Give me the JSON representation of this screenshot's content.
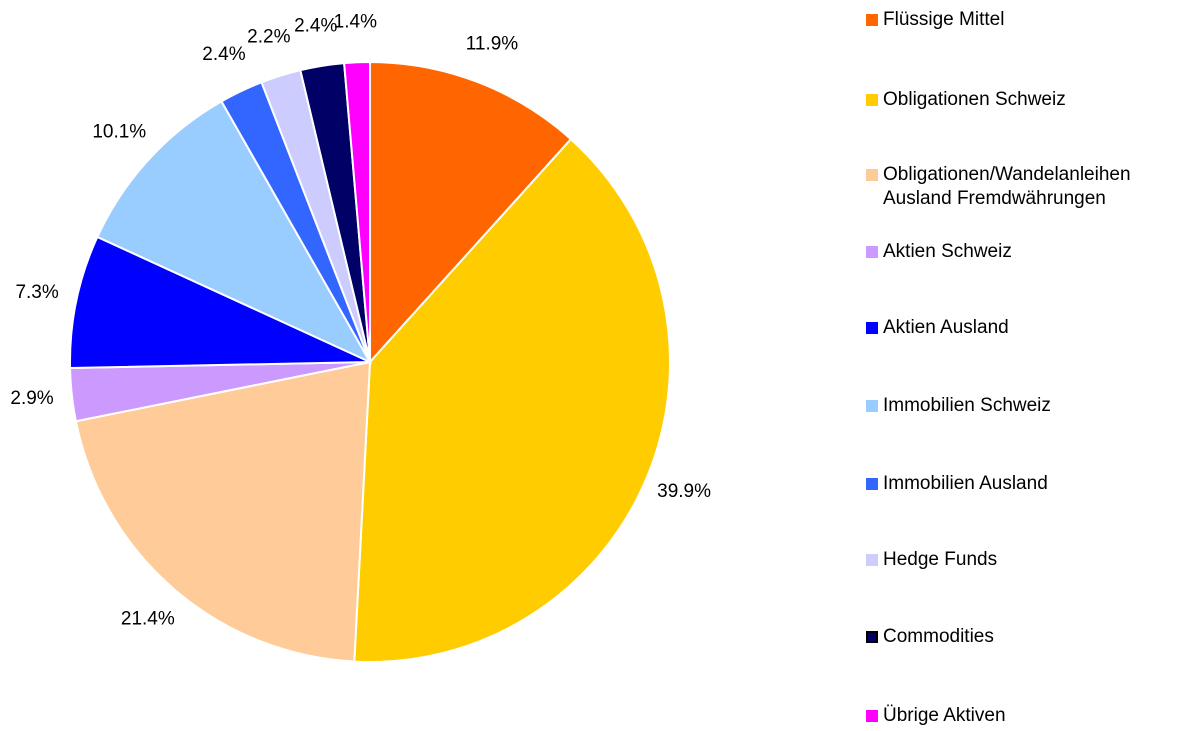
{
  "chart_data": {
    "type": "pie",
    "categories": [
      "Flüssige Mittel",
      "Obligationen Schweiz",
      "Obligationen/Wandelanleihen Ausland Fremdwährungen",
      "Aktien Schweiz",
      "Aktien Ausland",
      "Immobilien Schweiz",
      "Immobilien Ausland",
      "Hedge Funds",
      "Commodities",
      "Übrige Aktiven"
    ],
    "values": [
      11.9,
      39.9,
      21.4,
      2.9,
      7.3,
      10.1,
      2.4,
      2.2,
      2.4,
      1.4
    ],
    "value_labels": [
      "11.9%",
      "39.9%",
      "21.4%",
      "2.9%",
      "7.3%",
      "10.1%",
      "2.4%",
      "2.2%",
      "2.4%",
      "1.4%"
    ],
    "colors": [
      "#ff6600",
      "#ffcc00",
      "#ffcc99",
      "#cc99ff",
      "#0000ff",
      "#99ccff",
      "#3366ff",
      "#ccccff",
      "#000066",
      "#ff00ff"
    ],
    "legend": "right"
  }
}
